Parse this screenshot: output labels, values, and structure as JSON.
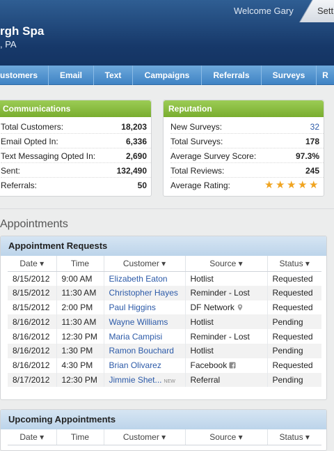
{
  "header": {
    "title": "rgh Spa",
    "subtitle": ", PA",
    "welcome": "Welcome Gary",
    "settings": "Sett"
  },
  "nav": {
    "items": [
      "ustomers",
      "Email",
      "Text",
      "Campaigns",
      "Referrals",
      "Surveys",
      "R"
    ]
  },
  "communications": {
    "title": "Communications",
    "rows": [
      {
        "label": "Total Customers:",
        "value": "18,203"
      },
      {
        "label": "Email Opted In:",
        "value": "6,336"
      },
      {
        "label": "Text Messaging Opted In:",
        "value": "2,690"
      },
      {
        "label": "Sent:",
        "value": "132,490"
      },
      {
        "label": "Referrals:",
        "value": "50"
      }
    ]
  },
  "reputation": {
    "title": "Reputation",
    "rows": [
      {
        "label": "New Surveys:",
        "value": "32"
      },
      {
        "label": "Total Surveys:",
        "value": "178"
      },
      {
        "label": "Average Survey Score:",
        "value": "97.3%"
      },
      {
        "label": "Total Reviews:",
        "value": "245"
      },
      {
        "label": "Average Rating:",
        "value": ""
      }
    ],
    "rating_stars": 5,
    "star_color": "#f0a420"
  },
  "appointments": {
    "section_title": "Appointments",
    "requests": {
      "title": "Appointment Requests",
      "columns": [
        "Date ▾",
        "Time",
        "Customer ▾",
        "Source ▾",
        "Status ▾"
      ],
      "rows": [
        {
          "date": "8/15/2012",
          "time": "9:00 AM",
          "customer": "Elizabeth Eaton",
          "source": "Hotlist",
          "status": "Requested"
        },
        {
          "date": "8/15/2012",
          "time": "11:30 AM",
          "customer": "Christopher Hayes",
          "source": "Reminder - Lost",
          "status": "Requested"
        },
        {
          "date": "8/15/2012",
          "time": "2:00 PM",
          "customer": "Paul Higgins",
          "source": "DF Network",
          "status": "Requested",
          "source_icon": "location-pin-icon"
        },
        {
          "date": "8/16/2012",
          "time": "11:30 AM",
          "customer": "Wayne Williams",
          "source": "Hotlist",
          "status": "Pending"
        },
        {
          "date": "8/16/2012",
          "time": "12:30 PM",
          "customer": "Maria Campisi",
          "source": "Reminder - Lost",
          "status": "Requested"
        },
        {
          "date": "8/16/2012",
          "time": "1:30 PM",
          "customer": "Ramon Bouchard",
          "source": "Hotlist",
          "status": "Pending"
        },
        {
          "date": "8/16/2012",
          "time": "4:30 PM",
          "customer": "Brian Olivarez",
          "source": "Facebook",
          "status": "Requested",
          "source_icon": "facebook-icon"
        },
        {
          "date": "8/17/2012",
          "time": "12:30 PM",
          "customer": "Jimmie Shet...",
          "source": "Referral",
          "status": "Pending",
          "badge": "NEW"
        }
      ]
    },
    "upcoming": {
      "title": "Upcoming Appointments",
      "columns": [
        "Date ▾",
        "Time",
        "Customer ▾",
        "Source ▾",
        "Status ▾"
      ]
    }
  },
  "colors": {
    "header_bg": "#17396a",
    "nav_bg": "#4d8fcd",
    "card_header": "#8ebf45",
    "panel_header": "#c9dcee",
    "link": "#2c5aa8"
  }
}
